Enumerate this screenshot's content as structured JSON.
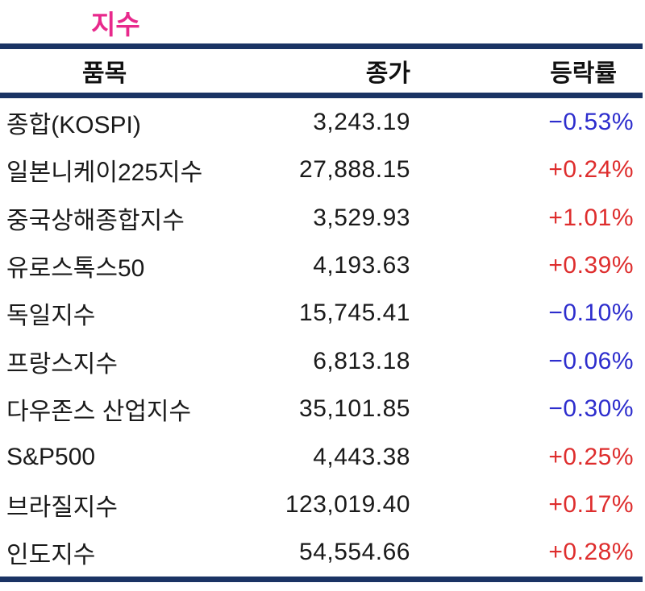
{
  "title": "지수",
  "colors": {
    "title_pink": "#E8298C",
    "rule_navy": "#1A3364",
    "positive_red": "#DE2D2D",
    "negative_blue": "#2D2DCD",
    "text_black": "#1A1A1A"
  },
  "table": {
    "headers": {
      "item": "품목",
      "close": "종가",
      "change": "등락률"
    },
    "rows": [
      {
        "item": "종합(KOSPI)",
        "close": "3,243.19",
        "change": "−0.53%",
        "direction": "down"
      },
      {
        "item": "일본니케이225지수",
        "close": "27,888.15",
        "change": "+0.24%",
        "direction": "up"
      },
      {
        "item": "중국상해종합지수",
        "close": "3,529.93",
        "change": "+1.01%",
        "direction": "up"
      },
      {
        "item": "유로스톡스50",
        "close": "4,193.63",
        "change": "+0.39%",
        "direction": "up"
      },
      {
        "item": "독일지수",
        "close": "15,745.41",
        "change": "−0.10%",
        "direction": "down"
      },
      {
        "item": "프랑스지수",
        "close": "6,813.18",
        "change": "−0.06%",
        "direction": "down"
      },
      {
        "item": "다우존스 산업지수",
        "close": "35,101.85",
        "change": "−0.30%",
        "direction": "down"
      },
      {
        "item": "S&P500",
        "close": "4,443.38",
        "change": "+0.25%",
        "direction": "up"
      },
      {
        "item": "브라질지수",
        "close": "123,019.40",
        "change": "+0.17%",
        "direction": "up"
      },
      {
        "item": "인도지수",
        "close": "54,554.66",
        "change": "+0.28%",
        "direction": "up"
      }
    ]
  },
  "chart_data": {
    "type": "table",
    "title": "지수",
    "columns": [
      "품목",
      "종가",
      "등락률"
    ],
    "rows": [
      [
        "종합(KOSPI)",
        3243.19,
        -0.53
      ],
      [
        "일본니케이225지수",
        27888.15,
        0.24
      ],
      [
        "중국상해종합지수",
        3529.93,
        1.01
      ],
      [
        "유로스톡스50",
        4193.63,
        0.39
      ],
      [
        "독일지수",
        15745.41,
        -0.1
      ],
      [
        "프랑스지수",
        6813.18,
        -0.06
      ],
      [
        "다우존스 산업지수",
        35101.85,
        -0.3
      ],
      [
        "S&P500",
        4443.38,
        0.25
      ],
      [
        "브라질지수",
        123019.4,
        0.17
      ],
      [
        "인도지수",
        54554.66,
        0.28
      ]
    ],
    "value_units": {
      "종가": "index points",
      "등락률": "percent"
    },
    "color_coding": {
      "positive": "red",
      "negative": "blue"
    }
  }
}
